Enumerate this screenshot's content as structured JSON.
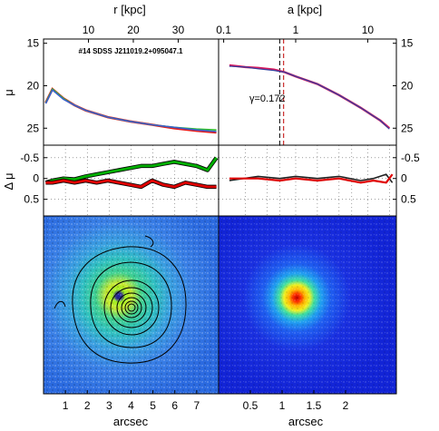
{
  "chart_data": [
    {
      "type": "line",
      "title": "#14 SDSS J211019.2+095047.1",
      "top_xlabel": "r [kpc]",
      "top_xticks": [
        "10",
        "20",
        "30"
      ],
      "top_xtick_values": [
        10,
        20,
        30
      ],
      "top_xlim": [
        0,
        39
      ],
      "ylabel": "μ",
      "ylim": [
        27,
        14.5
      ],
      "yticks": [
        "15",
        "20",
        "25"
      ],
      "ytick_values": [
        15,
        20,
        25
      ],
      "x_arcsec_lim": [
        0.1,
        8.0
      ],
      "series": [
        {
          "color": "#e81b1b",
          "x": [
            0.2,
            0.5,
            1,
            1.5,
            2,
            3,
            4,
            5,
            6,
            7,
            7.9
          ],
          "y": [
            22.0,
            20.4,
            21.5,
            22.3,
            22.9,
            23.7,
            24.2,
            24.6,
            25.0,
            25.3,
            25.5
          ]
        },
        {
          "color": "#2fbf2f",
          "x": [
            0.2,
            0.5,
            1,
            1.5,
            2,
            3,
            4,
            5,
            6,
            7,
            7.9
          ],
          "y": [
            22.0,
            20.4,
            21.5,
            22.3,
            22.9,
            23.7,
            24.2,
            24.6,
            24.9,
            25.1,
            25.2
          ]
        },
        {
          "color": "#3a5fcd",
          "x": [
            0.2,
            0.5,
            1,
            1.5,
            2,
            3,
            4,
            5,
            6,
            7,
            7.9
          ],
          "y": [
            22.1,
            20.5,
            21.6,
            22.3,
            22.9,
            23.7,
            24.2,
            24.6,
            24.9,
            25.2,
            25.4
          ]
        }
      ]
    },
    {
      "type": "line",
      "top_xlabel": "a [kpc]",
      "top_xticks": [
        "0.1",
        "1",
        "10"
      ],
      "top_xtick_values": [
        0.1,
        1,
        10
      ],
      "xscale": "log",
      "xlim_kpc": [
        0.085,
        25
      ],
      "ylim": [
        27,
        14.5
      ],
      "yticks": [
        "15",
        "20",
        "25"
      ],
      "ytick_values": [
        15,
        20,
        25
      ],
      "annotation": "γ=0.172",
      "dashed_lines_kpc": [
        0.6,
        0.68
      ],
      "series": [
        {
          "color": "#d81b60",
          "x": [
            0.12,
            0.2,
            0.3,
            0.5,
            0.7,
            1,
            2,
            4,
            8,
            15,
            20
          ],
          "y": [
            17.6,
            17.8,
            17.9,
            18.1,
            18.4,
            18.9,
            19.8,
            21.1,
            22.6,
            24.1,
            25.0
          ]
        },
        {
          "color": "#303f9f",
          "x": [
            0.12,
            0.2,
            0.3,
            0.5,
            0.7,
            1,
            2,
            4,
            8,
            15,
            20
          ],
          "y": [
            17.7,
            17.8,
            18.0,
            18.2,
            18.4,
            18.9,
            19.8,
            21.1,
            22.6,
            24.1,
            25.1
          ]
        }
      ]
    },
    {
      "type": "line",
      "ylabel": "Δ μ",
      "ylim": [
        0.9,
        -0.8
      ],
      "yticks": [
        "-0.5",
        "0",
        "0.5"
      ],
      "ytick_values": [
        -0.5,
        0,
        0.5
      ],
      "series": [
        {
          "color": "#00b000",
          "x": [
            0.2,
            0.5,
            1,
            1.5,
            2,
            2.5,
            3,
            3.5,
            4,
            4.5,
            5,
            5.5,
            6,
            6.5,
            7,
            7.5,
            7.9
          ],
          "y": [
            0.1,
            0.05,
            0.0,
            0.02,
            -0.05,
            -0.1,
            -0.15,
            -0.2,
            -0.25,
            -0.3,
            -0.3,
            -0.35,
            -0.4,
            -0.35,
            -0.3,
            -0.2,
            -0.5
          ]
        },
        {
          "color": "#e00000",
          "x": [
            0.2,
            0.5,
            1,
            1.5,
            2,
            2.5,
            3,
            3.5,
            4,
            4.5,
            5,
            5.5,
            6,
            6.5,
            7,
            7.5,
            7.9
          ],
          "y": [
            0.1,
            0.1,
            0.05,
            0.1,
            0.05,
            0.1,
            0.05,
            0.1,
            0.15,
            0.2,
            0.05,
            0.15,
            0.2,
            0.1,
            0.15,
            0.2,
            0.2
          ]
        }
      ]
    },
    {
      "type": "line",
      "xscale": "log",
      "ylim": [
        0.9,
        -0.8
      ],
      "yticks": [
        "-0.5",
        "0",
        "0.5"
      ],
      "ytick_values": [
        -0.5,
        0,
        0.5
      ],
      "series": [
        {
          "color": "#202020",
          "x": [
            0.12,
            0.3,
            0.6,
            1,
            2,
            4,
            8,
            12,
            18,
            22
          ],
          "y": [
            0.05,
            -0.05,
            0.0,
            -0.05,
            0.0,
            -0.05,
            0.05,
            0.0,
            -0.1,
            0.1
          ]
        },
        {
          "color": "#e00000",
          "x": [
            0.12,
            0.3,
            0.6,
            1,
            2,
            4,
            8,
            12,
            18,
            22
          ],
          "y": [
            0.0,
            0.0,
            0.05,
            0.0,
            0.05,
            0.0,
            0.1,
            0.05,
            0.1,
            -0.1
          ]
        }
      ]
    }
  ],
  "images": {
    "left": {
      "xlabel": "arcsec",
      "xticks": [
        "1",
        "2",
        "3",
        "4",
        "5",
        "6",
        "7"
      ],
      "xtick_values": [
        1,
        2,
        3,
        4,
        5,
        6,
        7
      ],
      "xlim": [
        0,
        8
      ]
    },
    "right": {
      "xlabel": "arcsec",
      "xticks": [
        "0.5",
        "1",
        "1.5",
        "2"
      ],
      "xtick_values": [
        0.5,
        1,
        1.5,
        2
      ],
      "xlim": [
        0,
        2.8
      ]
    }
  }
}
